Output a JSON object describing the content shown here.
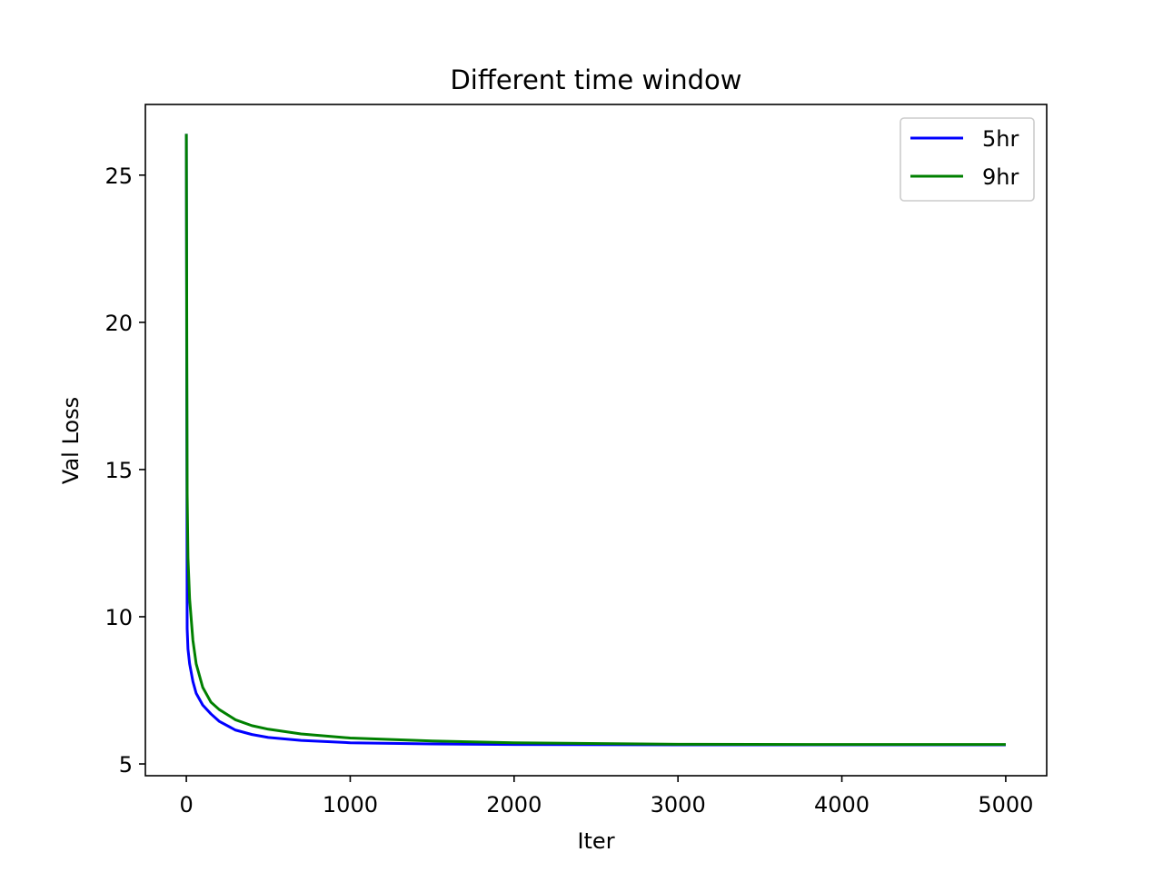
{
  "chart_data": {
    "type": "line",
    "title": "Different time window",
    "xlabel": "Iter",
    "ylabel": "Val Loss",
    "xlim": [
      -250,
      5250
    ],
    "ylim": [
      4.6,
      27.4
    ],
    "x_ticks": [
      0,
      1000,
      2000,
      3000,
      4000,
      5000
    ],
    "y_ticks": [
      5,
      10,
      15,
      20,
      25
    ],
    "legend_position": "top-right",
    "grid": false,
    "series": [
      {
        "name": "5hr",
        "color": "#0000ff",
        "x": [
          0,
          5,
          10,
          20,
          40,
          60,
          100,
          150,
          200,
          300,
          400,
          500,
          700,
          1000,
          1500,
          2000,
          3000,
          4000,
          5000
        ],
        "y": [
          26.4,
          9.6,
          8.9,
          8.4,
          7.8,
          7.4,
          7.0,
          6.7,
          6.45,
          6.15,
          6.0,
          5.9,
          5.8,
          5.72,
          5.68,
          5.66,
          5.65,
          5.65,
          5.65
        ]
      },
      {
        "name": "9hr",
        "color": "#008000",
        "x": [
          0,
          5,
          10,
          20,
          40,
          60,
          100,
          150,
          200,
          300,
          400,
          500,
          700,
          1000,
          1500,
          2000,
          3000,
          4000,
          5000
        ],
        "y": [
          26.4,
          14.2,
          12.0,
          10.6,
          9.2,
          8.4,
          7.6,
          7.1,
          6.85,
          6.5,
          6.3,
          6.18,
          6.02,
          5.88,
          5.78,
          5.72,
          5.67,
          5.66,
          5.66
        ]
      }
    ]
  }
}
